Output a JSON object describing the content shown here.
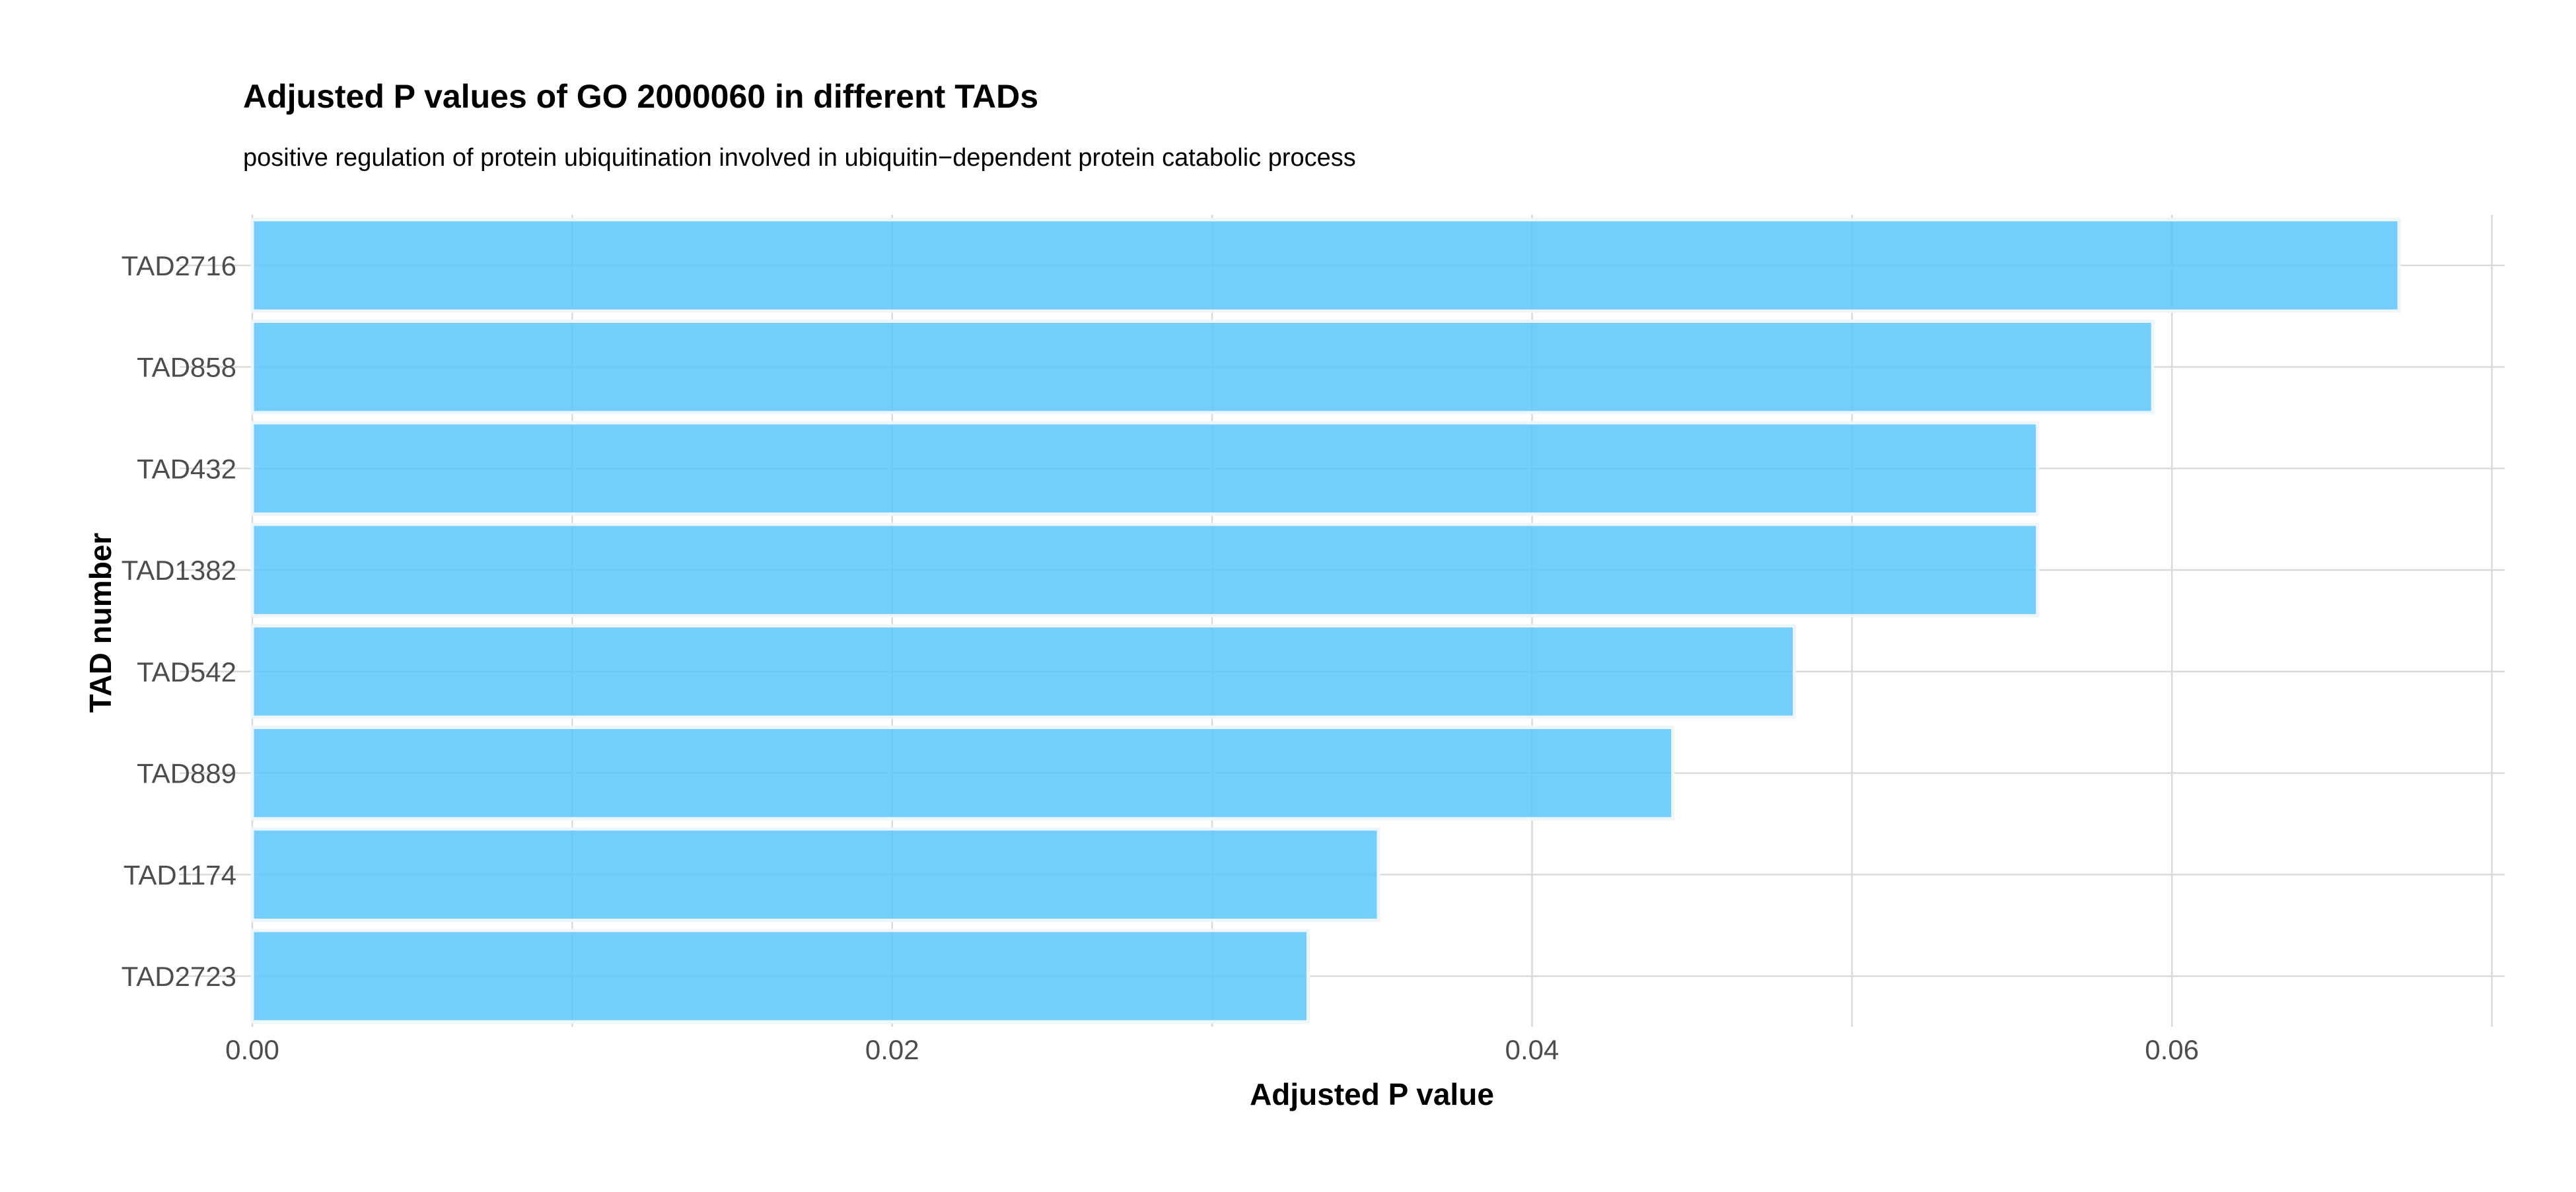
{
  "chart_data": {
    "type": "bar",
    "orientation": "horizontal",
    "title": "Adjusted P values of GO 2000060 in different TADs",
    "subtitle": "positive regulation of protein ubiquitination involved in ubiquitin−dependent protein catabolic process",
    "xlabel": "Adjusted P value",
    "ylabel": "TAD number",
    "categories": [
      "TAD2716",
      "TAD858",
      "TAD432",
      "TAD1382",
      "TAD542",
      "TAD889",
      "TAD1174",
      "TAD2723"
    ],
    "values": [
      0.0671,
      0.0594,
      0.0558,
      0.0558,
      0.0482,
      0.0444,
      0.0352,
      0.033
    ],
    "xlim": [
      0,
      0.0704
    ],
    "x_ticks": [
      0.0,
      0.02,
      0.04,
      0.06
    ],
    "x_tick_labels": [
      "0.00",
      "0.02",
      "0.04",
      "0.06"
    ],
    "minor_x_ticks": [
      0.01,
      0.03,
      0.05,
      0.07
    ],
    "grid": true,
    "legend": "none",
    "bar_color": "#5bc5fa"
  }
}
